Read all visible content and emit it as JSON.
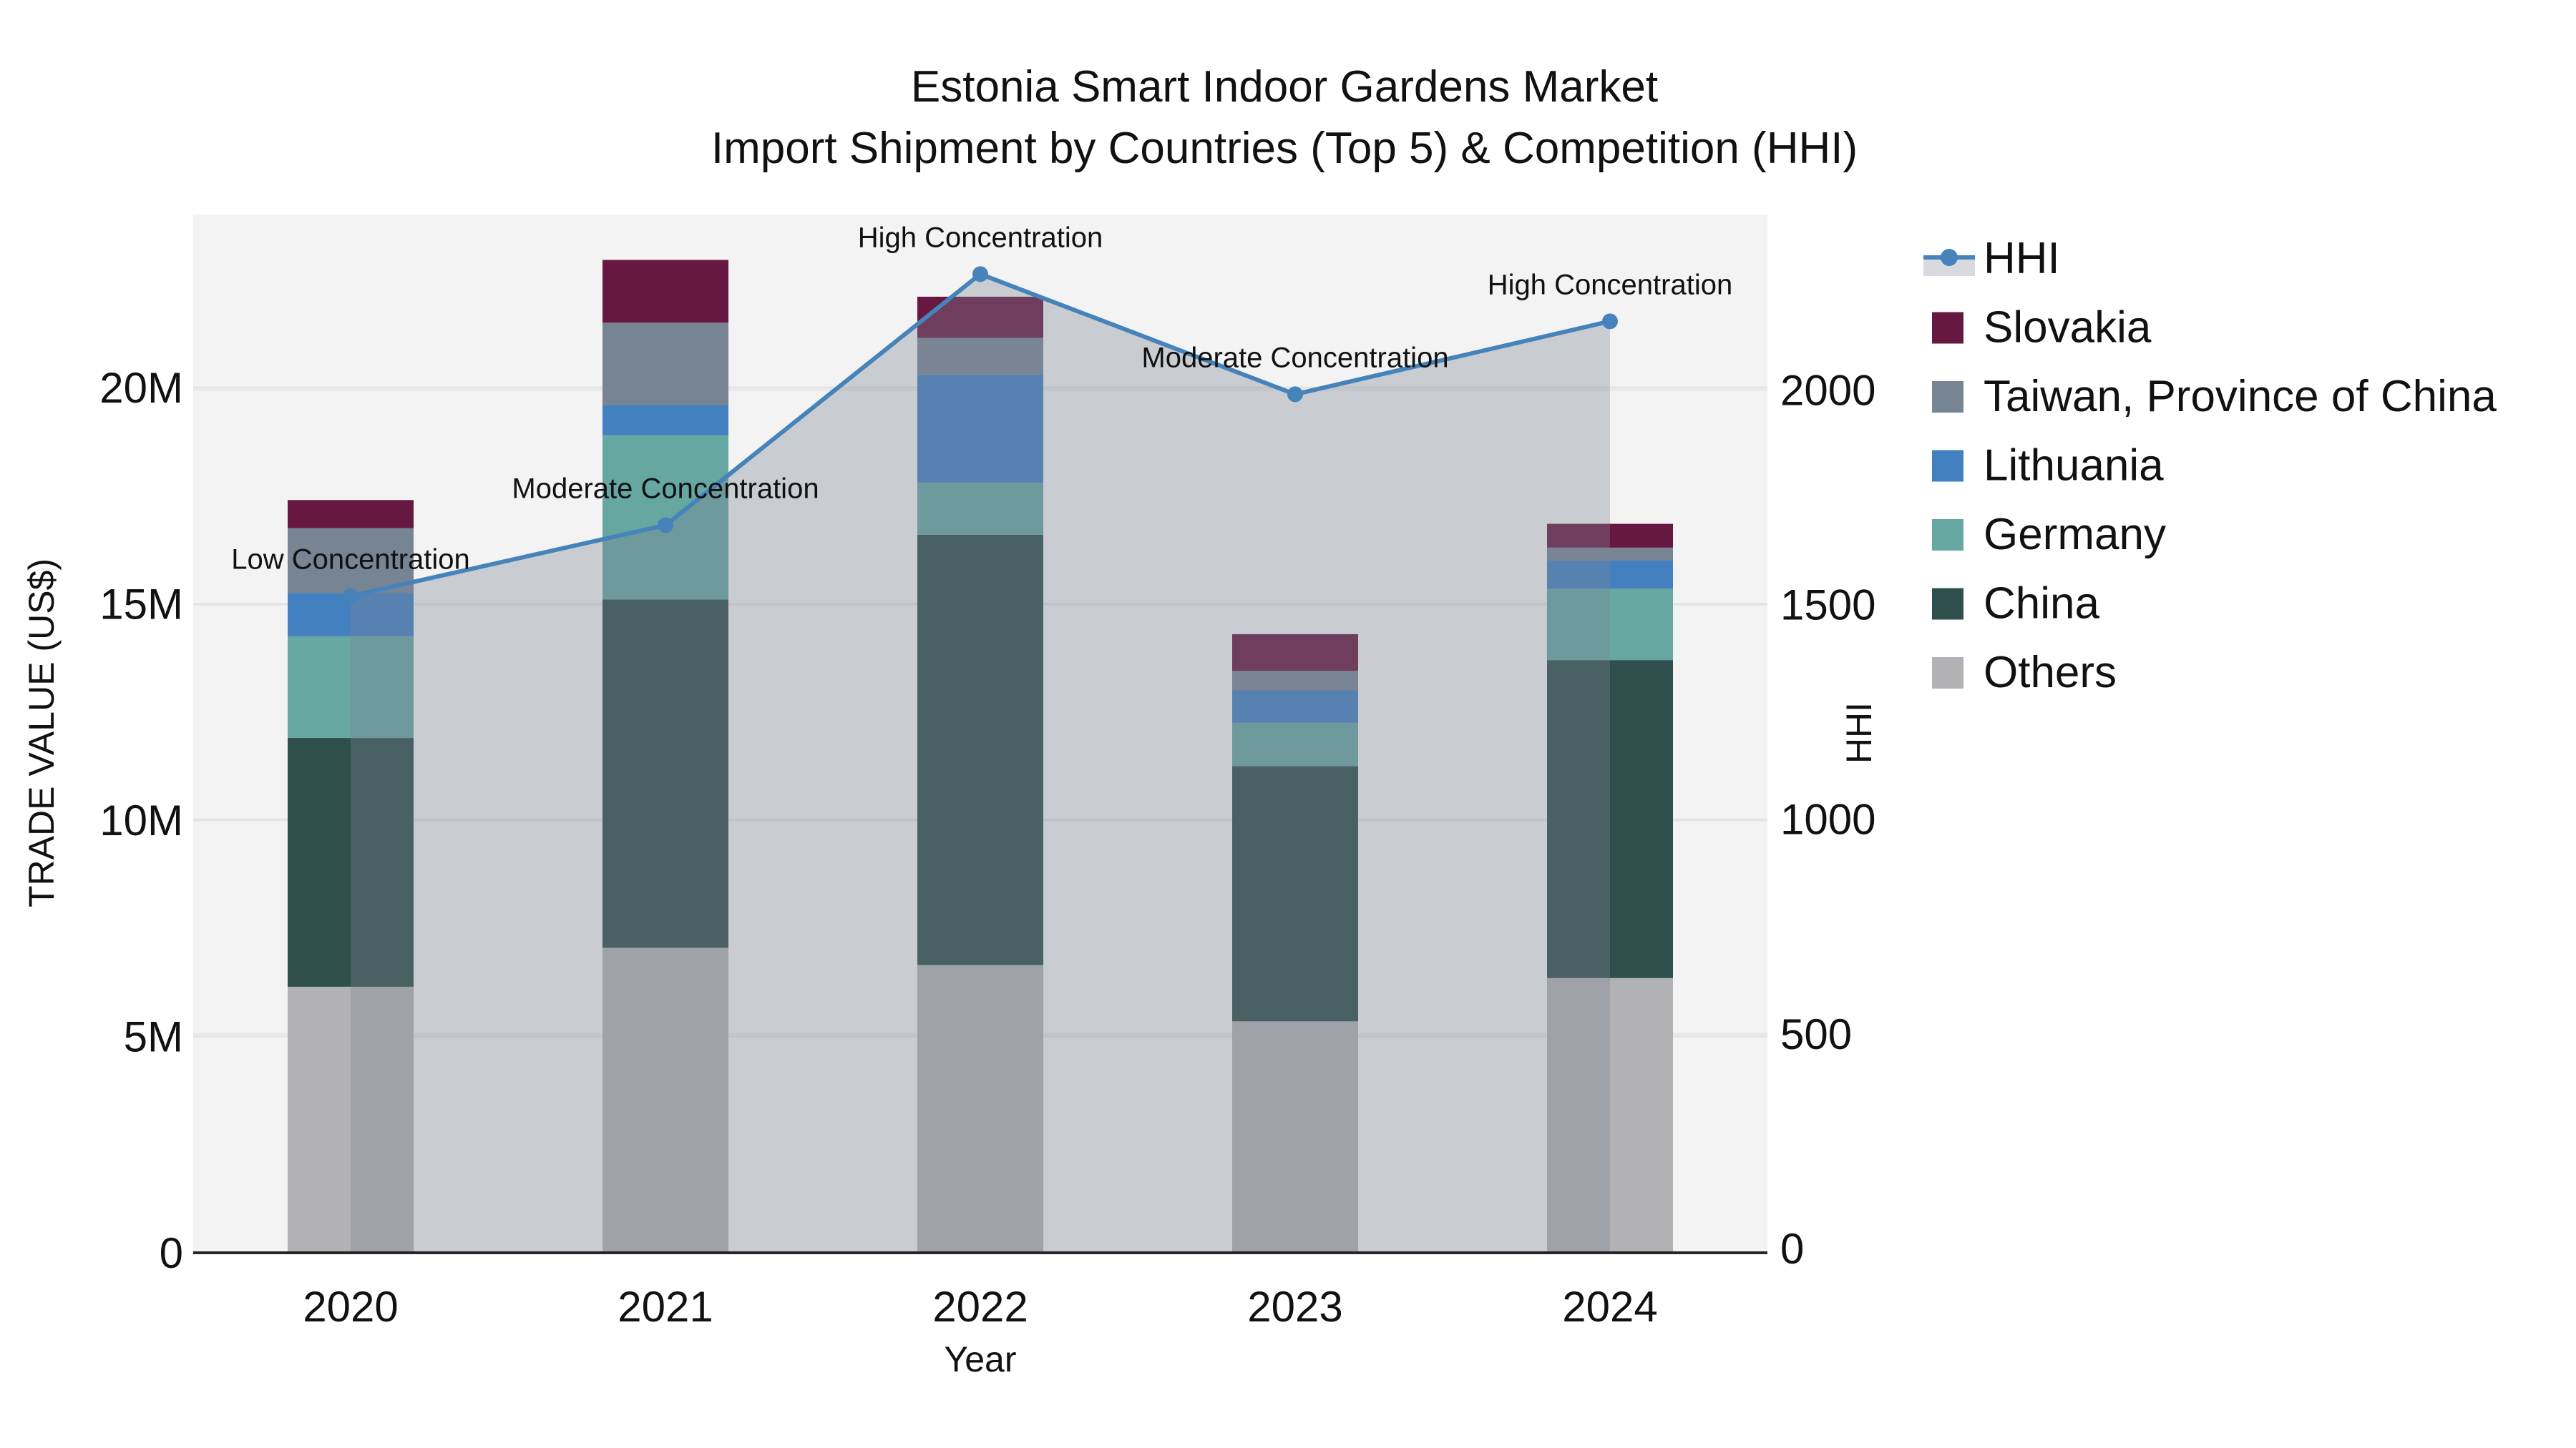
{
  "title": {
    "line1": "Estonia Smart Indoor Gardens Market",
    "line2": "Import Shipment by Countries (Top 5) & Competition (HHI)"
  },
  "axes": {
    "y_left": {
      "label": "TRADE VALUE (US$)",
      "tick_labels": [
        "0",
        "5M",
        "10M",
        "15M",
        "20M"
      ],
      "tick_values": [
        0,
        5,
        10,
        15,
        20
      ],
      "range": [
        0,
        24
      ]
    },
    "y_right": {
      "label": "HHI",
      "tick_labels": [
        "0",
        "500",
        "1000",
        "1500",
        "2000"
      ],
      "tick_values": [
        0,
        500,
        1000,
        1500,
        2000
      ],
      "range": [
        0,
        2410
      ]
    },
    "x": {
      "label": "Year",
      "categories": [
        "2020",
        "2021",
        "2022",
        "2023",
        "2024"
      ]
    }
  },
  "colors": {
    "plot_background": "#f2f3f2",
    "grid_left": "#e2e3e2",
    "grid_right": "#e8e9e8",
    "axis_line": "#262626",
    "hhi_line": "#4683bb",
    "hhi_area_overlay": "rgba(125,133,148,0.35)",
    "text": "#111111"
  },
  "legend": {
    "items": [
      {
        "label": "HHI",
        "type": "line",
        "color": "#4683bb"
      },
      {
        "label": "Slovakia",
        "type": "swatch",
        "color": "#671840"
      },
      {
        "label": "Taiwan, Province of China",
        "type": "swatch",
        "color": "#778494"
      },
      {
        "label": "Lithuania",
        "type": "swatch",
        "color": "#4280bf"
      },
      {
        "label": "Germany",
        "type": "swatch",
        "color": "#66a7a2"
      },
      {
        "label": "China",
        "type": "swatch",
        "color": "#2e4f4b"
      },
      {
        "label": "Others",
        "type": "swatch",
        "color": "#b2b2b4"
      }
    ]
  },
  "chart_data": {
    "type": "bar",
    "subtype": "stacked-bar-with-line",
    "title": "Estonia Smart Indoor Gardens Market — Import Shipment by Countries (Top 5) & Competition (HHI)",
    "xlabel": "Year",
    "ylabel_left": "TRADE VALUE (US$)",
    "ylabel_right": "HHI",
    "categories": [
      "2020",
      "2021",
      "2022",
      "2023",
      "2024"
    ],
    "bar_units": "million US$",
    "stack_order_bottom_to_top": [
      "Others",
      "China",
      "Germany",
      "Lithuania",
      "Taiwan, Province of China",
      "Slovakia"
    ],
    "series": [
      {
        "name": "Others",
        "color": "#b2b2b4",
        "values": [
          6.15,
          7.05,
          6.65,
          5.35,
          6.35
        ]
      },
      {
        "name": "China",
        "color": "#2e4f4b",
        "values": [
          5.75,
          8.05,
          9.95,
          5.9,
          7.35
        ]
      },
      {
        "name": "Germany",
        "color": "#66a7a2",
        "values": [
          2.35,
          3.8,
          1.2,
          1.0,
          1.65
        ]
      },
      {
        "name": "Lithuania",
        "color": "#4280bf",
        "values": [
          1.0,
          0.7,
          2.5,
          0.75,
          0.65
        ]
      },
      {
        "name": "Taiwan, Province of China",
        "color": "#778494",
        "values": [
          1.5,
          1.9,
          0.85,
          0.45,
          0.3
        ]
      },
      {
        "name": "Slovakia",
        "color": "#671840",
        "values": [
          0.65,
          1.45,
          0.95,
          0.85,
          0.55
        ]
      }
    ],
    "bar_totals": [
      17.4,
      22.95,
      22.1,
      14.3,
      16.85
    ],
    "line_series": {
      "name": "HHI",
      "axis": "right",
      "color": "#4683bb",
      "values": [
        1520,
        1685,
        2270,
        1990,
        2160
      ],
      "area_fill": true
    },
    "annotations": [
      {
        "x": "2020",
        "text": "Low Concentration"
      },
      {
        "x": "2021",
        "text": "Moderate Concentration"
      },
      {
        "x": "2022",
        "text": "High Concentration"
      },
      {
        "x": "2023",
        "text": "Moderate Concentration"
      },
      {
        "x": "2024",
        "text": "High Concentration"
      }
    ],
    "legend_position": "right",
    "grid": true
  }
}
